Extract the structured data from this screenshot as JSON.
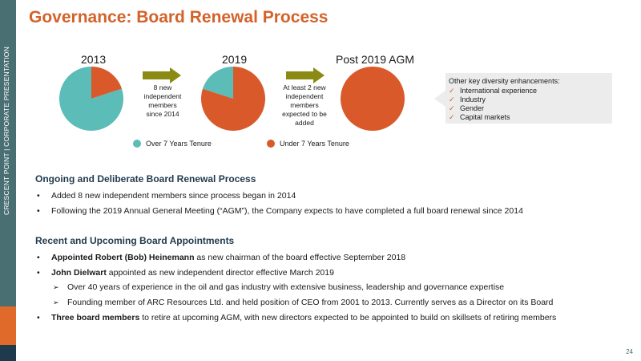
{
  "sidebar": {
    "text": "CRESCENT POINT   |   CORPORATE PRESENTATION"
  },
  "title": "Governance: Board Renewal Process",
  "chart_data": {
    "type": "pie",
    "charts": [
      {
        "label": "2013",
        "values": [
          {
            "name": "Over 7 Years Tenure",
            "value": 80
          },
          {
            "name": "Under 7 Years Tenure",
            "value": 20
          }
        ]
      },
      {
        "label": "2019",
        "values": [
          {
            "name": "Over 7 Years Tenure",
            "value": 20
          },
          {
            "name": "Under 7 Years Tenure",
            "value": 80
          }
        ]
      },
      {
        "label": "Post 2019 AGM",
        "values": [
          {
            "name": "Over 7 Years Tenure",
            "value": 0
          },
          {
            "name": "Under 7 Years Tenure",
            "value": 100
          }
        ]
      }
    ],
    "legend": [
      "Over 7 Years Tenure",
      "Under 7 Years Tenure"
    ],
    "colors": {
      "over": "#5bbcb8",
      "under": "#d9592a"
    }
  },
  "arrows": [
    {
      "text_lines": [
        "8 new",
        "independent",
        "members",
        "since 2014"
      ]
    },
    {
      "text_lines": [
        "At least 2 new",
        "independent",
        "members",
        "expected to be",
        "added"
      ]
    }
  ],
  "callout": {
    "heading": "Other key diversity enhancements:",
    "items": [
      "International experience",
      "Industry",
      "Gender",
      "Capital markets"
    ]
  },
  "section1": {
    "heading": "Ongoing and Deliberate Board Renewal Process",
    "bullets": [
      "Added 8 new independent members since process began in 2014",
      "Following the 2019 Annual General Meeting (“AGM”), the Company expects to have completed a full board renewal since 2014"
    ]
  },
  "section2": {
    "heading": "Recent and Upcoming  Board Appointments",
    "b1_bold": "Appointed Robert (Bob) Heinemann",
    "b1_rest": " as new chairman of the board effective September 2018",
    "b2_bold": "John Dielwart",
    "b2_rest": " appointed as new independent director effective March 2019",
    "sub1": "Over 40 years of experience in the oil and gas industry with extensive business, leadership and governance expertise",
    "sub2": "Founding member of ARC Resources Ltd. and held position of CEO from 2001 to 2013. Currently serves as a Director on its Board",
    "b3_bold": "Three board members",
    "b3_rest": " to retire at upcoming AGM, with new directors expected to be appointed to build on skillsets of retiring members"
  },
  "page_number": "24",
  "bullet_char": "•",
  "sub_char": "➢",
  "check_char": "✓"
}
